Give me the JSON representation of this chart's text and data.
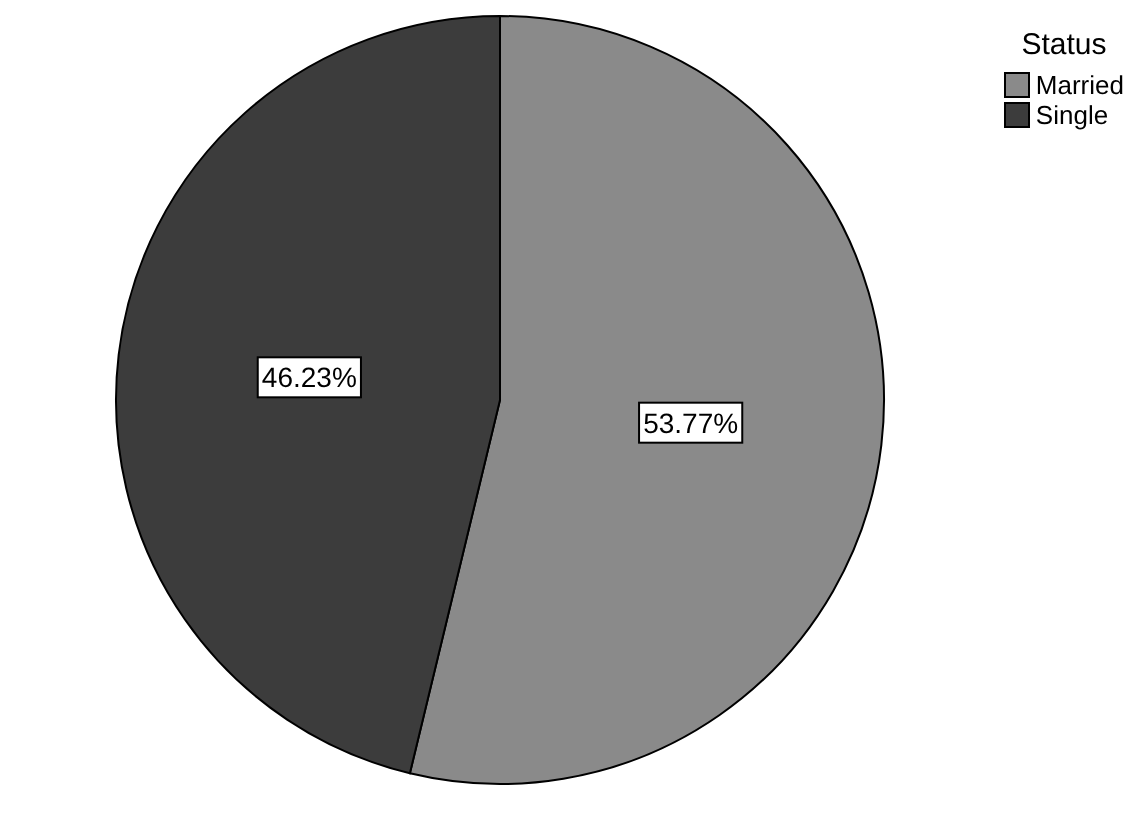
{
  "chart_data": {
    "type": "pie",
    "legend_title": "Status",
    "categories": [
      "Married",
      "Single"
    ],
    "values": [
      53.77,
      46.23
    ],
    "colors": [
      "#8a8a8a",
      "#3c3c3c"
    ],
    "value_labels": [
      "53.77%",
      "46.23%"
    ],
    "legend": "top right"
  }
}
